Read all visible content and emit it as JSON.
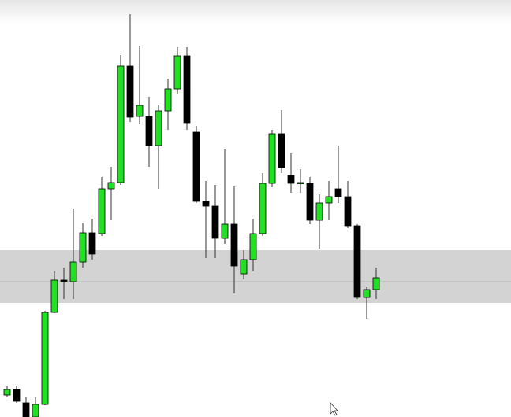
{
  "chart_data": {
    "type": "candlestick",
    "ylim": [
      0,
      530
    ],
    "up_color": "#22e022",
    "down_color": "#000000",
    "zone": [
      145,
      212
    ],
    "zone_color": "#d3d3d3",
    "level": 172,
    "level_color": "#a8a8a8",
    "open": [
      28,
      35,
      18,
      0,
      16,
      133,
      174,
      172,
      197,
      234,
      233,
      290,
      298,
      446,
      382,
      382,
      345,
      389,
      417,
      459,
      362,
      274,
      268,
      227,
      245,
      182,
      200,
      233,
      297,
      360,
      307,
      298,
      297,
      250,
      272,
      290,
      280,
      243,
      152,
      162
    ],
    "high": [
      40,
      40,
      25,
      25,
      135,
      185,
      190,
      265,
      247,
      252,
      305,
      318,
      460,
      512,
      472,
      407,
      397,
      430,
      470,
      470,
      370,
      300,
      295,
      340,
      293,
      212,
      252,
      310,
      365,
      390,
      335,
      315,
      305,
      283,
      300,
      345,
      300,
      245,
      165,
      190
    ],
    "low": [
      25,
      18,
      0,
      0,
      15,
      132,
      150,
      150,
      190,
      200,
      230,
      250,
      295,
      375,
      372,
      318,
      290,
      365,
      410,
      365,
      272,
      202,
      202,
      220,
      157,
      175,
      185,
      230,
      292,
      310,
      285,
      285,
      245,
      214,
      250,
      272,
      240,
      150,
      125,
      150
    ],
    "close": [
      35,
      20,
      0,
      16,
      133,
      174,
      173,
      197,
      234,
      207,
      290,
      298,
      446,
      381,
      396,
      345,
      389,
      417,
      459,
      374,
      274,
      268,
      227,
      245,
      192,
      200,
      233,
      297,
      360,
      317,
      297,
      298,
      250,
      272,
      280,
      280,
      243,
      152,
      162,
      177
    ]
  }
}
